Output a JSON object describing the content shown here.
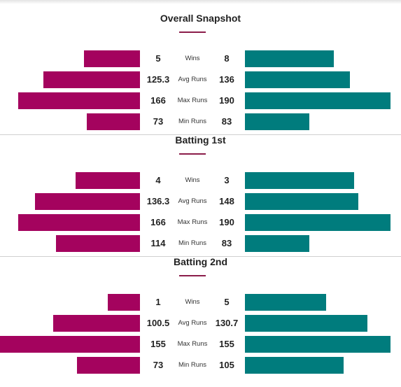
{
  "sections": [
    {
      "title": "Overall Snapshot",
      "rows": [
        {
          "metric": "Wins",
          "left": "5",
          "right": "8",
          "left_frac": 0.4,
          "right_frac": 0.61
        },
        {
          "metric": "Avg Runs",
          "left": "125.3",
          "right": "136",
          "left_frac": 0.69,
          "right_frac": 0.72
        },
        {
          "metric": "Max Runs",
          "left": "166",
          "right": "190",
          "left_frac": 0.87,
          "right_frac": 1.0
        },
        {
          "metric": "Min Runs",
          "left": "73",
          "right": "83",
          "left_frac": 0.38,
          "right_frac": 0.44
        }
      ]
    },
    {
      "title": "Batting 1st",
      "rows": [
        {
          "metric": "Wins",
          "left": "4",
          "right": "3",
          "left_frac": 0.46,
          "right_frac": 0.75
        },
        {
          "metric": "Avg Runs",
          "left": "136.3",
          "right": "148",
          "left_frac": 0.75,
          "right_frac": 0.78
        },
        {
          "metric": "Max Runs",
          "left": "166",
          "right": "190",
          "left_frac": 0.87,
          "right_frac": 1.0
        },
        {
          "metric": "Min Runs",
          "left": "114",
          "right": "83",
          "left_frac": 0.6,
          "right_frac": 0.44
        }
      ]
    },
    {
      "title": "Batting 2nd",
      "rows": [
        {
          "metric": "Wins",
          "left": "1",
          "right": "5",
          "left_frac": 0.23,
          "right_frac": 0.56
        },
        {
          "metric": "Avg Runs",
          "left": "100.5",
          "right": "130.7",
          "left_frac": 0.62,
          "right_frac": 0.84
        },
        {
          "metric": "Max Runs",
          "left": "155",
          "right": "155",
          "left_frac": 1.0,
          "right_frac": 1.0
        },
        {
          "metric": "Min Runs",
          "left": "73",
          "right": "105",
          "left_frac": 0.45,
          "right_frac": 0.68
        }
      ]
    }
  ],
  "colors": {
    "left_team": "#a4035e",
    "right_team": "#007c7d",
    "underline": "#8b1d4a"
  }
}
